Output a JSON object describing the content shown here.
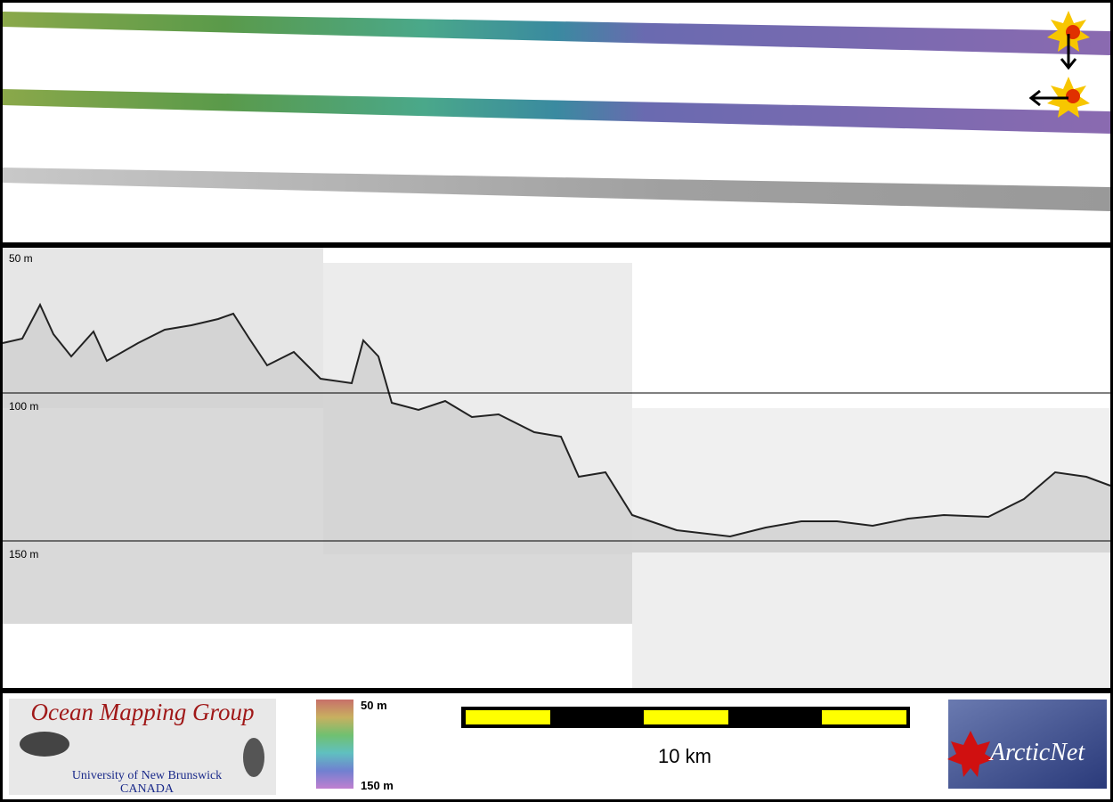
{
  "profile": {
    "depth_labels": [
      "50 m",
      "100 m",
      "150 m"
    ]
  },
  "colorbar": {
    "top_label": "50 m",
    "bottom_label": "150 m"
  },
  "scale_bar": {
    "label": "10 km"
  },
  "logos": {
    "omg": {
      "title": "Ocean Mapping Group",
      "line1": "University of New Brunswick",
      "line2": "CANADA"
    },
    "arcticnet": "ArcticNet"
  }
}
